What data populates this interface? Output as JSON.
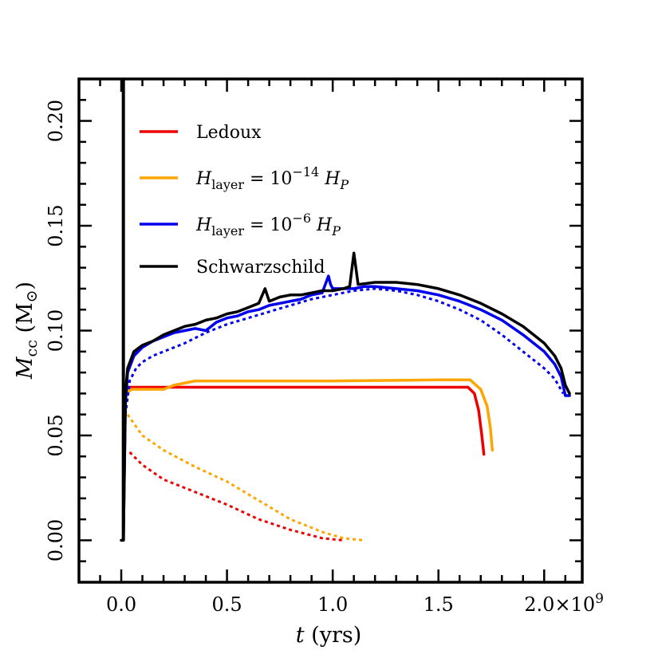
{
  "chart_data": {
    "type": "line",
    "xlabel": {
      "italic": "t",
      "rest": " (yrs)"
    },
    "ylabel": {
      "italic": "M",
      "sub": "cc",
      "rest": " (M",
      "sub2": "⊙",
      "close": ")"
    },
    "xlim": [
      -0.2,
      2.18
    ],
    "ylim": [
      -0.02,
      0.22
    ],
    "x_multiplier_label": "×10",
    "x_multiplier_exp": "9",
    "x_ticks": [
      0.0,
      0.5,
      1.0,
      1.5,
      2.0
    ],
    "x_tick_labels": [
      "0.0",
      "0.5",
      "1.0",
      "1.5",
      "2.0"
    ],
    "y_ticks": [
      0.0,
      0.05,
      0.1,
      0.15,
      0.2
    ],
    "y_tick_labels": [
      "0.00",
      "0.05",
      "0.10",
      "0.15",
      "0.20"
    ],
    "legend": {
      "placement": "top-left",
      "entries": [
        {
          "color": "#ee0000",
          "text": "Ledoux"
        },
        {
          "color": "#ffa500",
          "math": true,
          "base": "H",
          "sub": "layer",
          "mid": " = 10",
          "exp": "−14",
          "tail_base": "H",
          "tail_sub": "P"
        },
        {
          "color": "#0000ee",
          "math": true,
          "base": "H",
          "sub": "layer",
          "mid": " = 10",
          "exp": "−6",
          "tail_base": "H",
          "tail_sub": "P"
        },
        {
          "color": "#000000",
          "text": "Schwarzschild"
        }
      ]
    },
    "series": [
      {
        "name": "Ledoux",
        "color": "#ee0000",
        "style": "solid",
        "x": [
          0.02,
          0.03,
          0.2,
          0.5,
          1.0,
          1.5,
          1.64,
          1.67,
          1.69,
          1.705,
          1.715
        ],
        "y": [
          0.07,
          0.073,
          0.073,
          0.073,
          0.073,
          0.073,
          0.073,
          0.07,
          0.062,
          0.05,
          0.041
        ]
      },
      {
        "name": "Ledoux (dotted)",
        "color": "#ee0000",
        "style": "dotted",
        "x": [
          0.04,
          0.1,
          0.2,
          0.35,
          0.5,
          0.65,
          0.8,
          0.95,
          1.05
        ],
        "y": [
          0.042,
          0.036,
          0.029,
          0.023,
          0.017,
          0.01,
          0.005,
          0.001,
          0.0
        ]
      },
      {
        "name": "H_layer = 10^-14 H_P",
        "color": "#ffa500",
        "style": "solid",
        "x": [
          0.02,
          0.05,
          0.2,
          0.25,
          0.35,
          0.5,
          1.0,
          1.5,
          1.65,
          1.7,
          1.73,
          1.745,
          1.755
        ],
        "y": [
          0.07,
          0.072,
          0.072,
          0.074,
          0.076,
          0.076,
          0.076,
          0.0765,
          0.0765,
          0.072,
          0.064,
          0.054,
          0.043
        ]
      },
      {
        "name": "H_layer = 10^-14 H_P (dotted)",
        "color": "#ffa500",
        "style": "dotted",
        "x": [
          0.03,
          0.1,
          0.2,
          0.35,
          0.5,
          0.65,
          0.8,
          0.95,
          1.05,
          1.15
        ],
        "y": [
          0.06,
          0.05,
          0.043,
          0.035,
          0.028,
          0.019,
          0.01,
          0.004,
          0.001,
          0.0
        ]
      },
      {
        "name": "H_layer = 10^-6 H_P",
        "color": "#0000ee",
        "style": "solid",
        "x": [
          0.01,
          0.02,
          0.03,
          0.06,
          0.1,
          0.15,
          0.2,
          0.25,
          0.3,
          0.35,
          0.4,
          0.45,
          0.5,
          0.55,
          0.6,
          0.65,
          0.7,
          0.75,
          0.8,
          0.85,
          0.9,
          0.95,
          0.98,
          0.99,
          1.0,
          1.05,
          1.1,
          1.15,
          1.2,
          1.3,
          1.4,
          1.5,
          1.6,
          1.7,
          1.8,
          1.9,
          2.0,
          2.05,
          2.08,
          2.1,
          2.12
        ],
        "y": [
          0.0,
          0.065,
          0.08,
          0.088,
          0.092,
          0.095,
          0.097,
          0.099,
          0.1,
          0.101,
          0.1,
          0.104,
          0.106,
          0.107,
          0.109,
          0.11,
          0.112,
          0.113,
          0.114,
          0.115,
          0.117,
          0.118,
          0.126,
          0.122,
          0.12,
          0.12,
          0.12,
          0.121,
          0.121,
          0.12,
          0.119,
          0.117,
          0.114,
          0.11,
          0.105,
          0.098,
          0.09,
          0.084,
          0.078,
          0.069,
          0.069
        ]
      },
      {
        "name": "H_layer = 10^-6 H_P (dotted)",
        "color": "#0000ee",
        "style": "dotted",
        "x": [
          0.02,
          0.04,
          0.07,
          0.1,
          0.15,
          0.2,
          0.3,
          0.4,
          0.5,
          0.6,
          0.7,
          0.8,
          0.9,
          1.0,
          1.1,
          1.2,
          1.3,
          1.4,
          1.5,
          1.6,
          1.7,
          1.8,
          1.9,
          2.0,
          2.05,
          2.09
        ],
        "y": [
          0.06,
          0.076,
          0.082,
          0.085,
          0.088,
          0.09,
          0.094,
          0.099,
          0.103,
          0.106,
          0.109,
          0.112,
          0.115,
          0.117,
          0.119,
          0.12,
          0.119,
          0.117,
          0.114,
          0.11,
          0.105,
          0.098,
          0.09,
          0.082,
          0.077,
          0.07
        ]
      },
      {
        "name": "Schwarzschild",
        "color": "#000000",
        "style": "solid",
        "x": [
          0.0,
          0.01,
          0.02,
          0.03,
          0.06,
          0.1,
          0.15,
          0.2,
          0.25,
          0.3,
          0.35,
          0.4,
          0.45,
          0.5,
          0.55,
          0.6,
          0.65,
          0.68,
          0.7,
          0.75,
          0.8,
          0.85,
          0.9,
          0.95,
          1.0,
          1.05,
          1.08,
          1.1,
          1.12,
          1.2,
          1.3,
          1.4,
          1.5,
          1.6,
          1.7,
          1.8,
          1.9,
          2.0,
          2.05,
          2.08,
          2.1,
          2.12
        ],
        "y": [
          0.0,
          0.0,
          0.07,
          0.082,
          0.09,
          0.093,
          0.095,
          0.098,
          0.1,
          0.102,
          0.103,
          0.105,
          0.106,
          0.108,
          0.109,
          0.111,
          0.113,
          0.12,
          0.114,
          0.116,
          0.117,
          0.117,
          0.118,
          0.119,
          0.119,
          0.12,
          0.121,
          0.137,
          0.122,
          0.123,
          0.123,
          0.122,
          0.12,
          0.117,
          0.113,
          0.108,
          0.102,
          0.094,
          0.088,
          0.082,
          0.074,
          0.07
        ]
      }
    ],
    "spike": {
      "color": "#000000",
      "x": 0.01,
      "y_top": 0.22,
      "y_bottom": 0.0
    }
  }
}
